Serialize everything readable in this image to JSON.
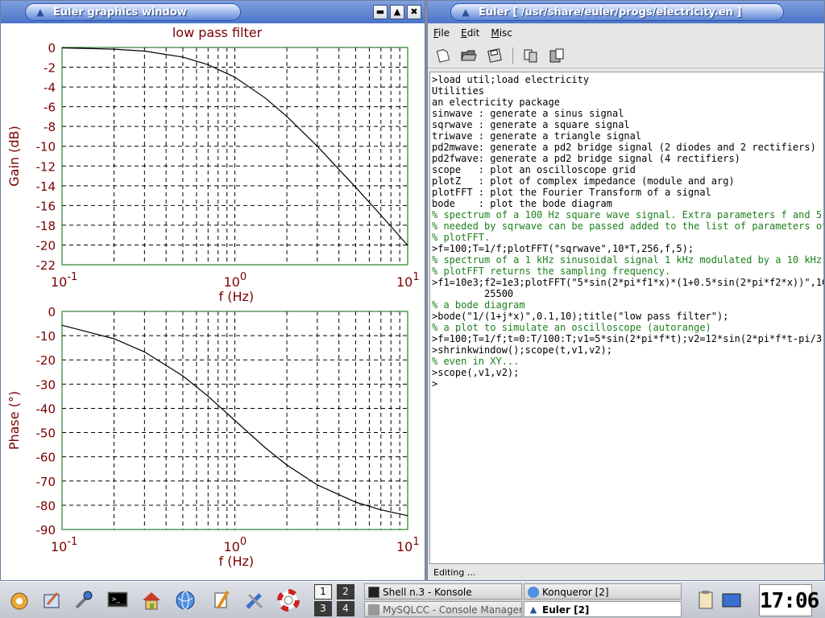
{
  "graphics_window": {
    "title": "Euler graphics window",
    "buttons": [
      "minimize",
      "maximize",
      "close"
    ]
  },
  "chart_data": [
    {
      "type": "line",
      "title": "low pass filter",
      "xlabel": "f (Hz)",
      "ylabel": "Gain (dB)",
      "x_scale": "log",
      "xlim": [
        0.1,
        10
      ],
      "ylim": [
        -22,
        0
      ],
      "x_ticks": [
        "10-1",
        "10 0",
        "10 1"
      ],
      "y_ticks": [
        "0",
        "-2",
        "-4",
        "-6",
        "-8",
        "-10",
        "-12",
        "-14",
        "-16",
        "-18",
        "-20",
        "-22"
      ],
      "grid": true,
      "series": [
        {
          "x": [
            0.1,
            0.2,
            0.3,
            0.5,
            0.7,
            1,
            1.5,
            2,
            3,
            5,
            7,
            10
          ],
          "y": [
            -0.04,
            -0.17,
            -0.37,
            -0.97,
            -1.74,
            -3.01,
            -5.12,
            -6.99,
            -10.0,
            -14.15,
            -16.98,
            -20.04
          ]
        }
      ]
    },
    {
      "type": "line",
      "title": "",
      "xlabel": "f (Hz)",
      "ylabel": "Phase (°)",
      "x_scale": "log",
      "xlim": [
        0.1,
        10
      ],
      "ylim": [
        -90,
        0
      ],
      "x_ticks": [
        "10-1",
        "10 0",
        "10 1"
      ],
      "y_ticks": [
        "0",
        "-10",
        "-20",
        "-30",
        "-40",
        "-50",
        "-60",
        "-70",
        "-80",
        "-90"
      ],
      "grid": true,
      "series": [
        {
          "x": [
            0.1,
            0.2,
            0.3,
            0.5,
            0.7,
            1,
            1.5,
            2,
            3,
            5,
            7,
            10
          ],
          "y": [
            -5.7,
            -11.3,
            -16.7,
            -26.6,
            -35.0,
            -45.0,
            -56.3,
            -63.4,
            -71.6,
            -78.7,
            -81.9,
            -84.3
          ]
        }
      ]
    }
  ],
  "console_window": {
    "title": "Euler [ /usr/share/euler/progs/electricity.en ]",
    "menu": [
      "File",
      "Edit",
      "Misc"
    ],
    "toolbar_icons": [
      "new-file-icon",
      "open-folder-icon",
      "save-disk-icon",
      "copy-icon",
      "paste-icon"
    ],
    "lines": [
      {
        "kind": "cmd",
        "text": ">load util;load electricity"
      },
      {
        "kind": "out",
        "text": "Utilities"
      },
      {
        "kind": "out",
        "text": "an electricity package"
      },
      {
        "kind": "out",
        "text": "sinwave : generate a sinus signal"
      },
      {
        "kind": "out",
        "text": "sqrwave : generate a square signal"
      },
      {
        "kind": "out",
        "text": "triwave : generate a triangle signal"
      },
      {
        "kind": "out",
        "text": "pd2mwave: generate a pd2 bridge signal (2 diodes and 2 rectifiers)"
      },
      {
        "kind": "out",
        "text": "pd2fwave: generate a pd2 bridge signal (4 rectifiers)"
      },
      {
        "kind": "out",
        "text": "scope   : plot an oscilloscope grid"
      },
      {
        "kind": "out",
        "text": "plotZ   : plot of complex impedance (module and arg)"
      },
      {
        "kind": "out",
        "text": "plotFFT : plot the Fourier Transform of a signal"
      },
      {
        "kind": "out",
        "text": "bode    : plot the bode diagram"
      },
      {
        "kind": "cmt",
        "text": "% spectrum of a 100 Hz square wave signal. Extra parameters f and 5"
      },
      {
        "kind": "cmt",
        "text": "% needed by sqrwave can be passed added to the list of parameters of"
      },
      {
        "kind": "cmt",
        "text": "% plotFFT."
      },
      {
        "kind": "cmd",
        "text": ">f=100;T=1/f;plotFFT(\"sqrwave\",10*T,256,f,5);"
      },
      {
        "kind": "cmt",
        "text": "% spectrum of a 1 kHz sinusoidal signal 1 kHz modulated by a 10 kHz ca"
      },
      {
        "kind": "cmt",
        "text": "% plotFFT returns the sampling frequency."
      },
      {
        "kind": "cmd",
        "text": ">f1=10e3;f2=1e3;plotFFT(\"5*sin(2*pi*f1*x)*(1+0.5*sin(2*pi*f2*x))\",10/f"
      },
      {
        "kind": "res",
        "text": "         25500"
      },
      {
        "kind": "cmt",
        "text": "% a bode diagram"
      },
      {
        "kind": "cmd",
        "text": ">bode(\"1/(1+j*x)\",0.1,10);title(\"low pass filter\");"
      },
      {
        "kind": "cmt",
        "text": "% a plot to simulate an oscilloscope (autorange)"
      },
      {
        "kind": "cmd",
        "text": ">f=100;T=1/f;t=0:T/100:T;v1=5*sin(2*pi*f*t);v2=12*sin(2*pi*f*t-pi/3);"
      },
      {
        "kind": "cmd",
        "text": ">shrinkwindow();scope(t,v1,v2);"
      },
      {
        "kind": "cmt",
        "text": "% even in XY..."
      },
      {
        "kind": "cmd",
        "text": ">scope(,v1,v2);"
      },
      {
        "kind": "cmd",
        "text": ">"
      }
    ],
    "status": "Editing ..."
  },
  "taskbar": {
    "launchers": [
      "kde-menu-icon",
      "kate-icon",
      "control-center-icon",
      "terminal-icon",
      "home-icon",
      "browser-globe-icon",
      "kword-icon",
      "tools-icon",
      "help-lifebuoy-icon"
    ],
    "pager": [
      "1",
      "2",
      "3",
      "4"
    ],
    "tasks": [
      {
        "label": "Shell n.3 - Konsole",
        "active": false
      },
      {
        "label": "Konqueror [2]",
        "active": false
      },
      {
        "label": "MySQLCC - Console Manager",
        "active": false
      },
      {
        "label": "Euler [2]",
        "active": true
      }
    ],
    "clock": "17:06"
  }
}
